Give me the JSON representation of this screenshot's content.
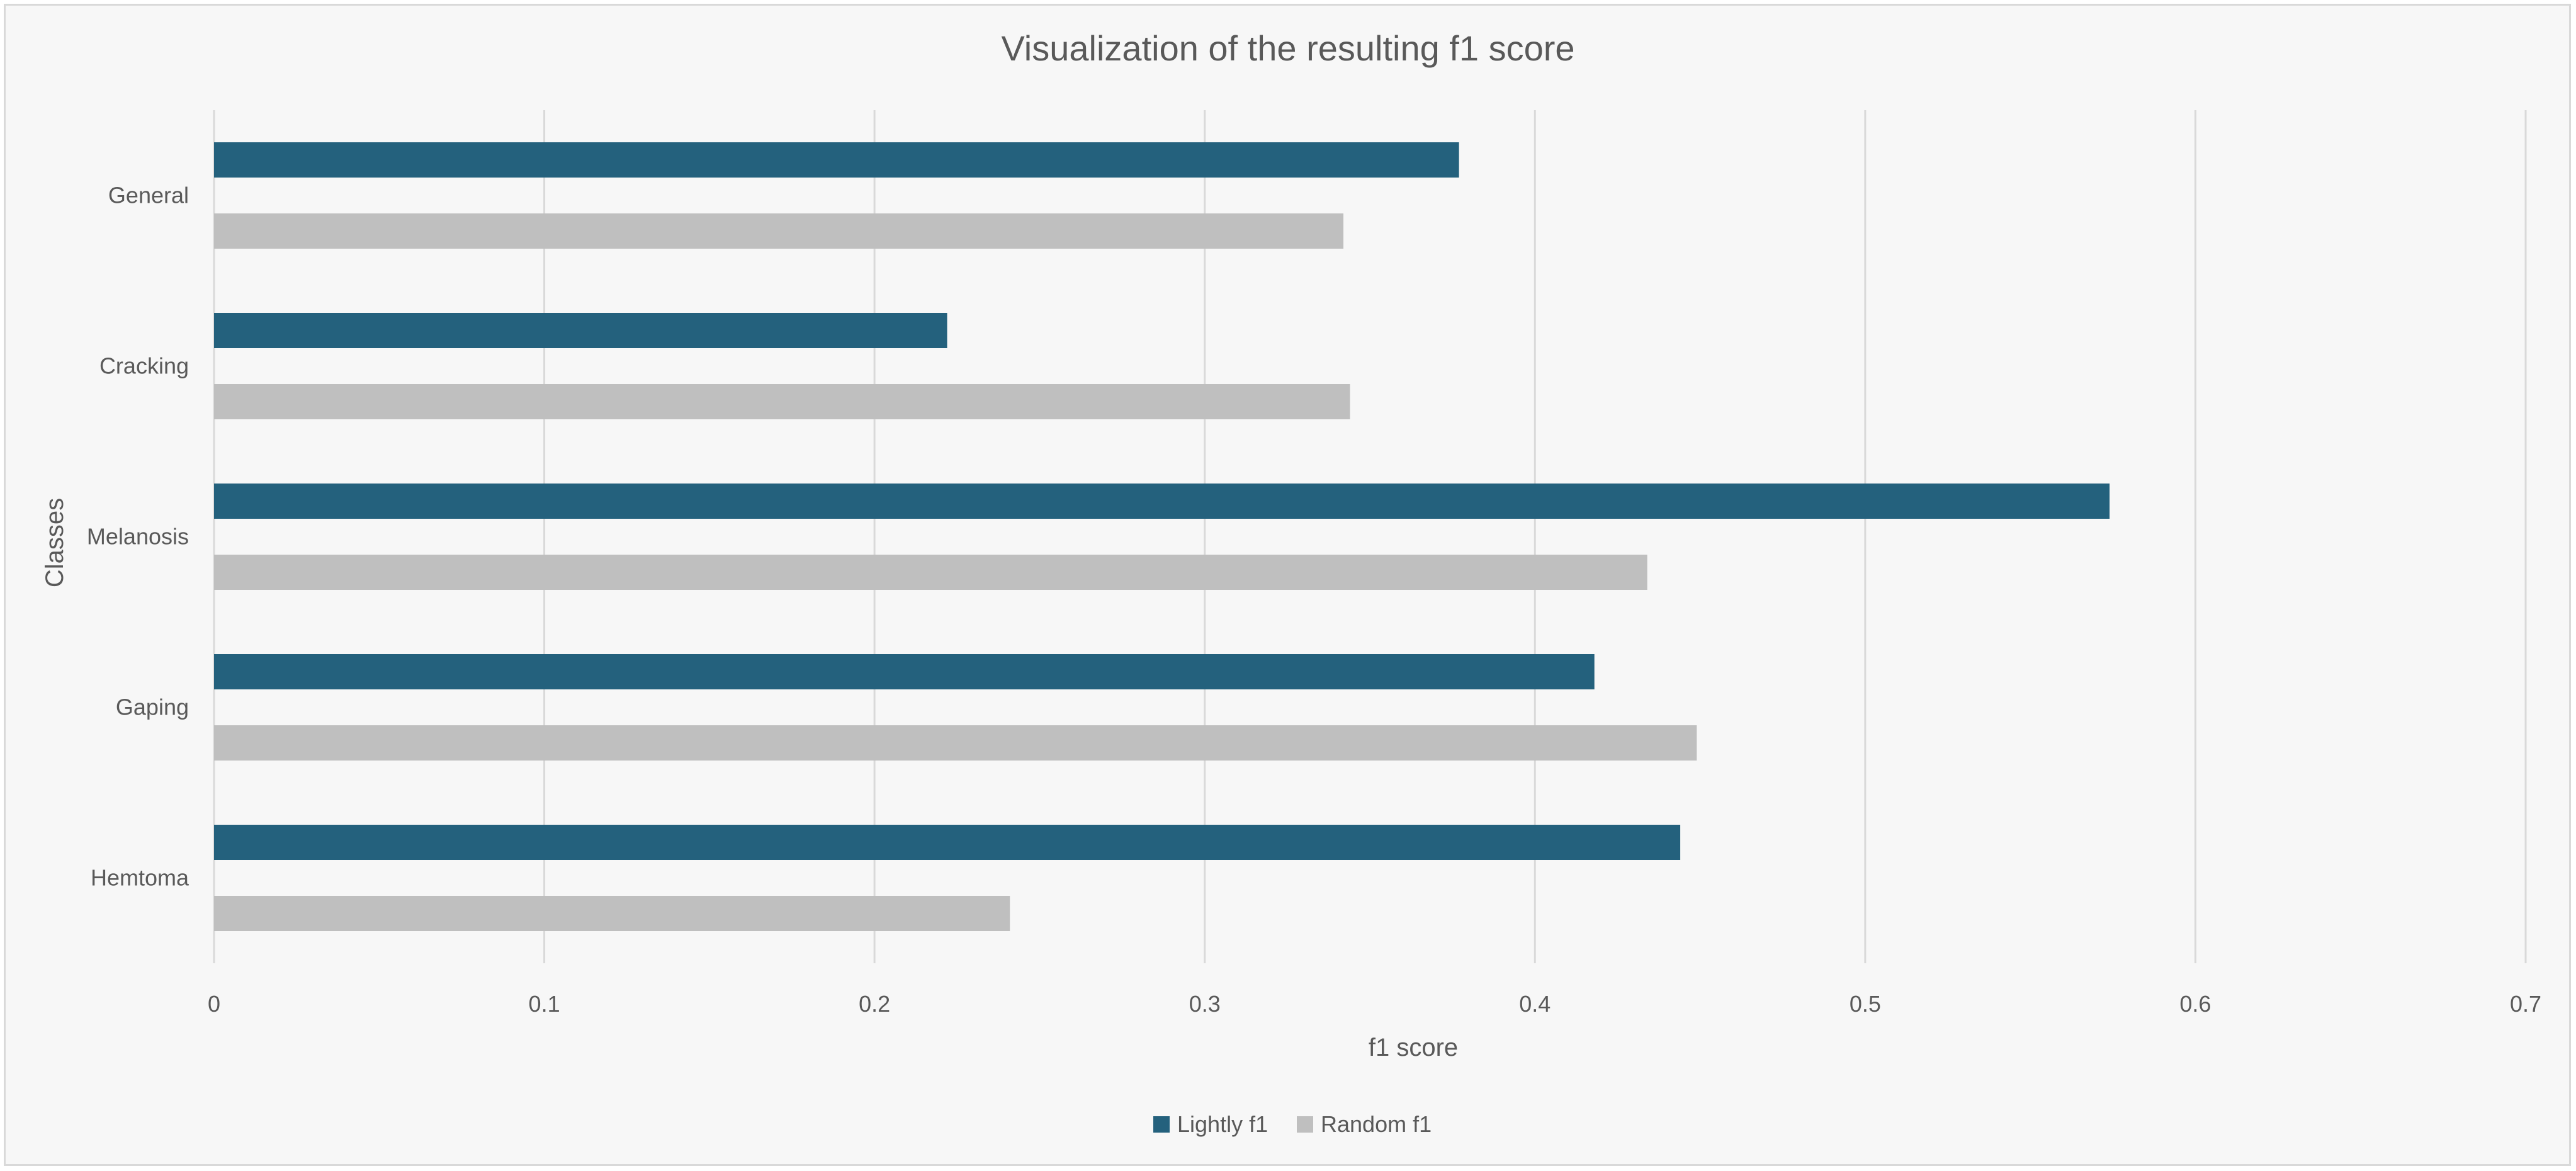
{
  "chart_data": {
    "type": "bar",
    "orientation": "horizontal",
    "title": "Visualization of the resulting f1 score",
    "xlabel": "f1 score",
    "ylabel": "Classes",
    "categories": [
      "General",
      "Cracking",
      "Melanosis",
      "Gaping",
      "Hemtoma"
    ],
    "series": [
      {
        "name": "Lightly f1",
        "color": "#24617d",
        "values": [
          0.377,
          0.222,
          0.574,
          0.418,
          0.444
        ]
      },
      {
        "name": "Random f1",
        "color": "#bfbfbf",
        "values": [
          0.342,
          0.344,
          0.434,
          0.449,
          0.241
        ]
      }
    ],
    "xlim": [
      0,
      0.7
    ],
    "xticks": [
      "0",
      "0.1",
      "0.2",
      "0.3",
      "0.4",
      "0.5",
      "0.6",
      "0.7"
    ],
    "grid": true,
    "legend_position": "bottom"
  }
}
